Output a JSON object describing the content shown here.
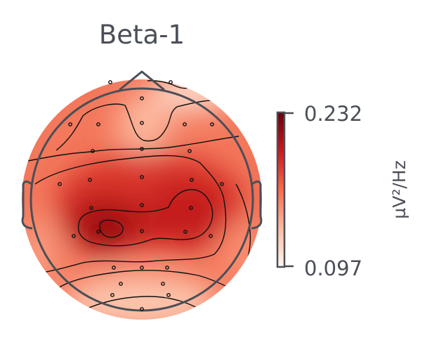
{
  "chart_data": {
    "type": "heatmap",
    "subtype": "eeg-topomap",
    "title": "Beta-1",
    "colorbar": {
      "min": 0.097,
      "max": 0.232,
      "min_label": "0.097",
      "max_label": "0.232",
      "unit": "µV²/Hz",
      "colormap": "reds",
      "colors": [
        "#fff5f0",
        "#fcbba1",
        "#fb6a4a",
        "#cb181d",
        "#67000d"
      ]
    },
    "head_outline_color": "#4a4f57",
    "sensor_count": 32
  }
}
